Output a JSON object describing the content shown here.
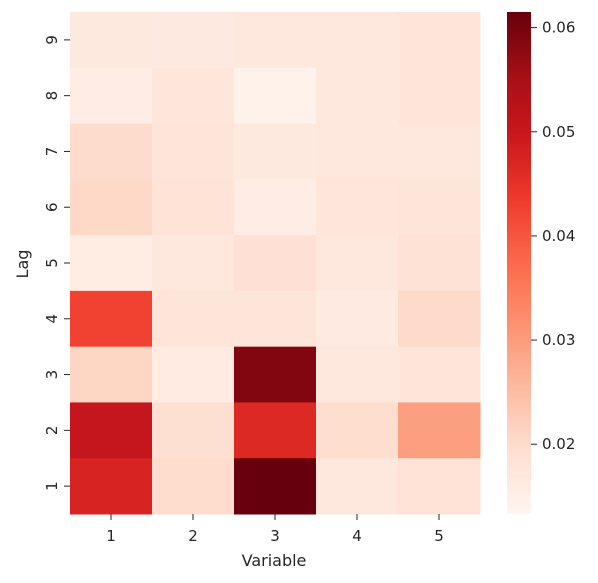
{
  "chart_data": {
    "type": "heatmap",
    "xlabel": "Variable",
    "ylabel": "Lag",
    "x_categories": [
      "1",
      "2",
      "3",
      "4",
      "5"
    ],
    "y_categories": [
      "1",
      "2",
      "3",
      "4",
      "5",
      "6",
      "7",
      "8",
      "9"
    ],
    "colormap": "Reds",
    "colorbar": {
      "min": 0.0133,
      "max": 0.0615,
      "ticks": [
        "0.02",
        "0.03",
        "0.04",
        "0.05",
        "0.06"
      ]
    },
    "rows": [
      {
        "lag": "9",
        "values": [
          0.0168,
          0.0166,
          0.0172,
          0.0172,
          0.0179
        ]
      },
      {
        "lag": "8",
        "values": [
          0.0158,
          0.0175,
          0.0143,
          0.0172,
          0.018
        ]
      },
      {
        "lag": "7",
        "values": [
          0.02,
          0.018,
          0.0168,
          0.0172,
          0.0172
        ]
      },
      {
        "lag": "6",
        "values": [
          0.0205,
          0.0185,
          0.0158,
          0.0176,
          0.018
        ]
      },
      {
        "lag": "5",
        "values": [
          0.016,
          0.017,
          0.019,
          0.017,
          0.0188
        ]
      },
      {
        "lag": "4",
        "values": [
          0.0425,
          0.018,
          0.018,
          0.0165,
          0.0203
        ]
      },
      {
        "lag": "3",
        "values": [
          0.021,
          0.0162,
          0.059,
          0.017,
          0.018
        ]
      },
      {
        "lag": "2",
        "values": [
          0.0505,
          0.0192,
          0.0465,
          0.0197,
          0.0295
        ]
      },
      {
        "lag": "1",
        "values": [
          0.0475,
          0.0198,
          0.0615,
          0.017,
          0.0185
        ]
      }
    ]
  }
}
